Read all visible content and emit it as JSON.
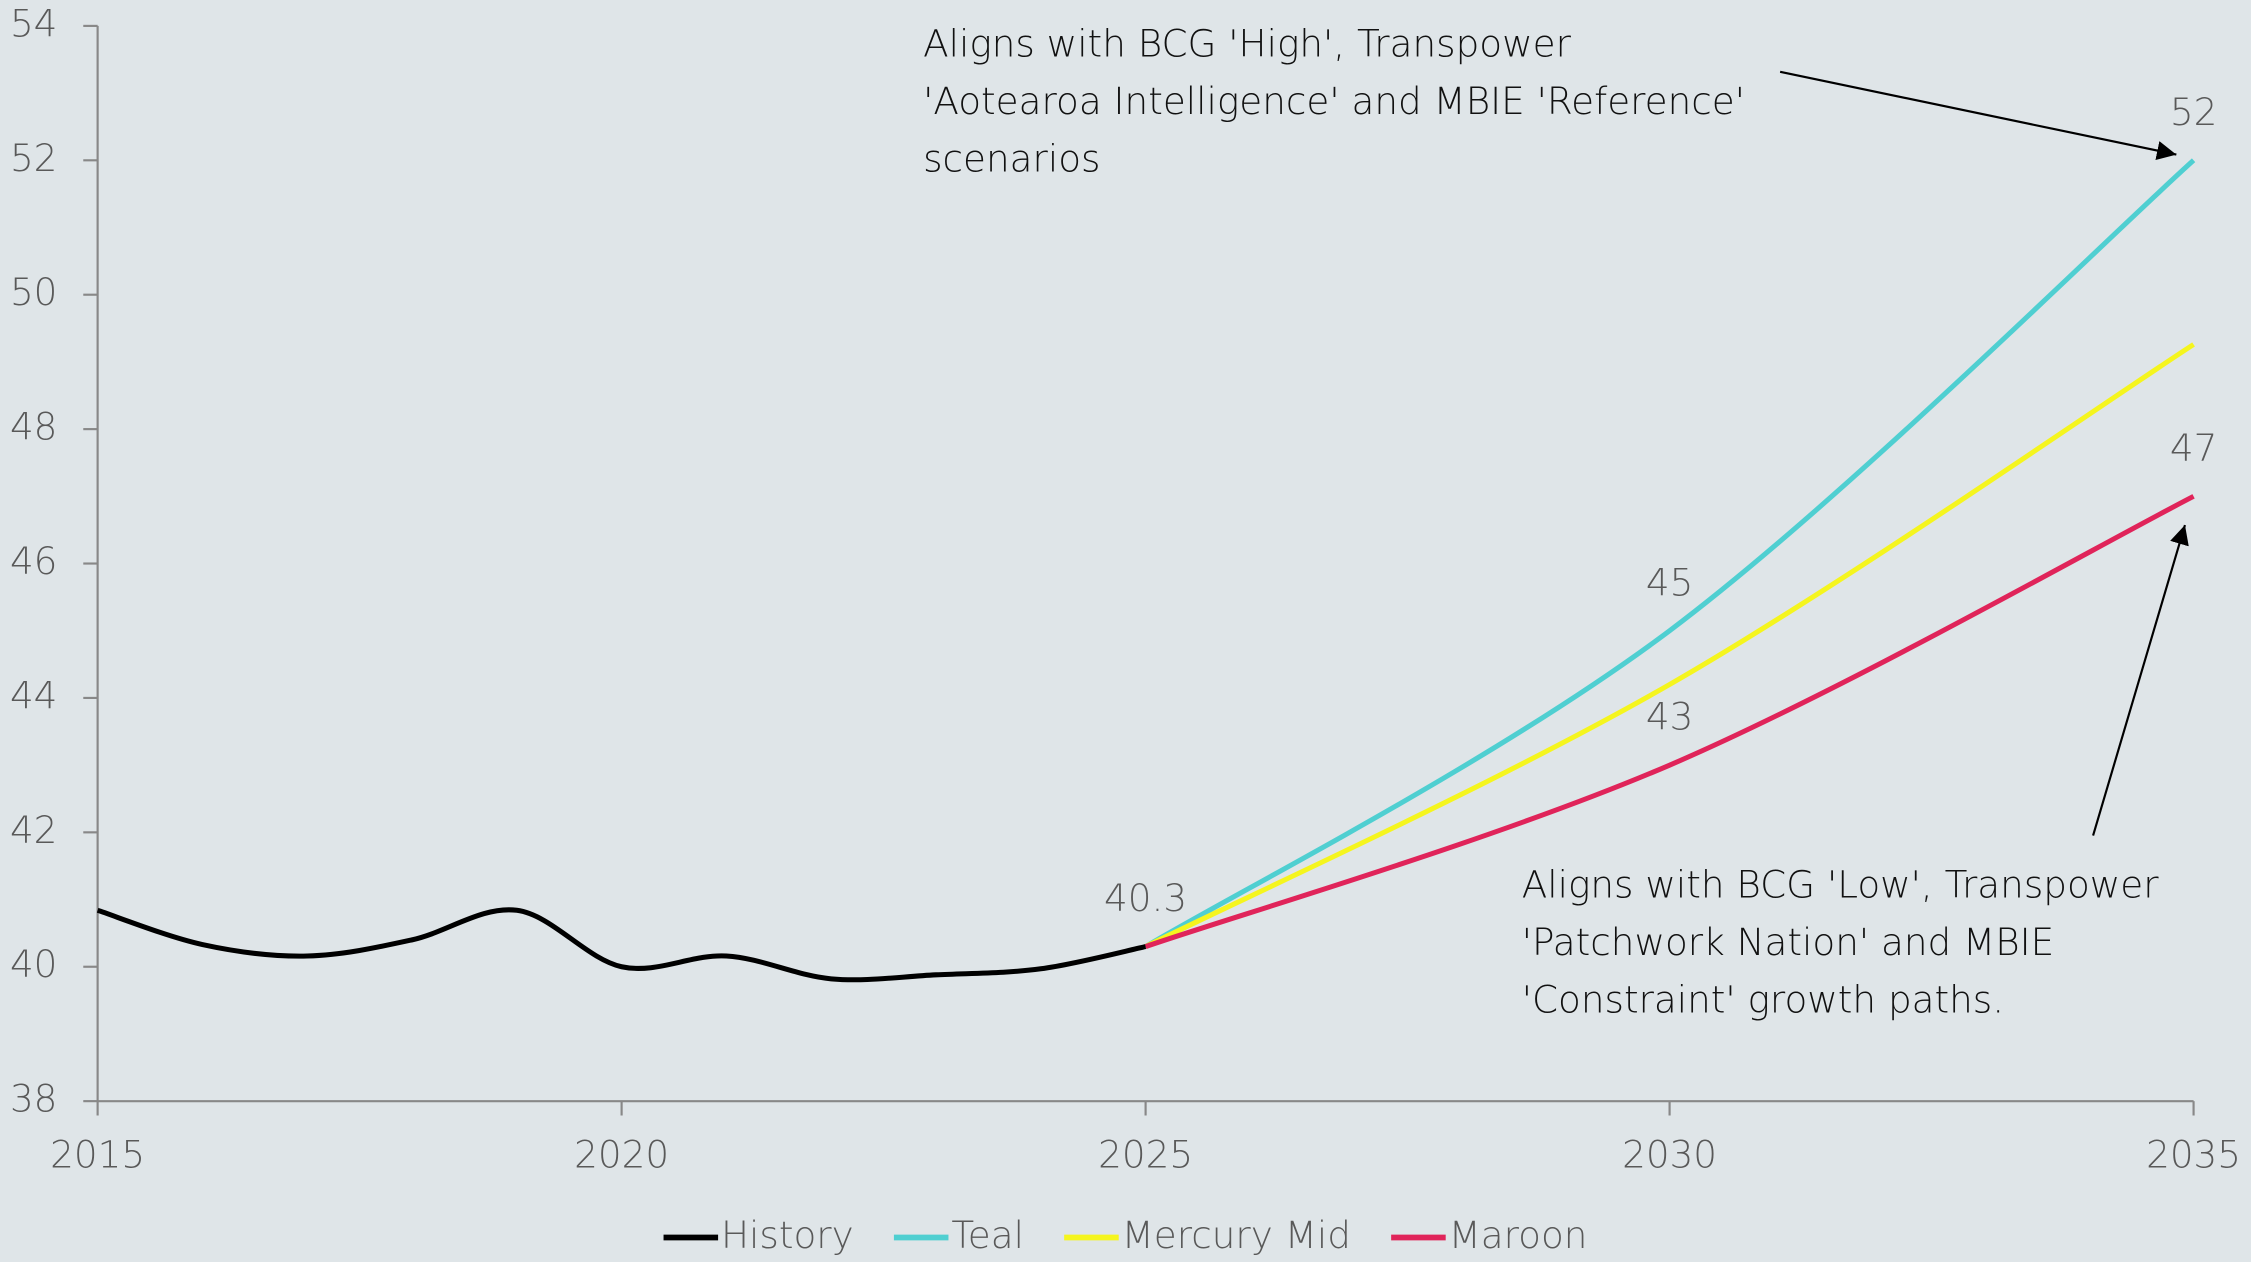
{
  "chart_data": {
    "type": "line",
    "xlim": [
      2015,
      2035
    ],
    "xticks": [
      2015,
      2020,
      2025,
      2030,
      2035
    ],
    "ylim": [
      38,
      54
    ],
    "yticks": [
      38,
      40,
      42,
      44,
      46,
      48,
      50,
      52,
      54
    ],
    "series": [
      {
        "name": "History",
        "color": "#000000",
        "x": [
          2015,
          2016,
          2017,
          2018,
          2019,
          2020,
          2021,
          2022,
          2023,
          2024,
          2025
        ],
        "values": [
          40.84,
          40.33,
          40.16,
          40.4,
          40.84,
          40.0,
          40.16,
          39.82,
          39.88,
          39.97,
          40.3
        ],
        "value_labels": [
          null,
          null,
          null,
          null,
          null,
          null,
          null,
          null,
          null,
          null,
          "40.3"
        ]
      },
      {
        "name": "Teal",
        "color": "#4fcfd1",
        "x": [
          2025,
          2030,
          2035
        ],
        "values": [
          40.3,
          45,
          52
        ],
        "value_labels": [
          null,
          "45",
          "52"
        ]
      },
      {
        "name": "Mercury Mid",
        "color": "#f5f51e",
        "x": [
          2025,
          2030,
          2035
        ],
        "values": [
          40.3,
          44.2,
          49.26
        ],
        "value_labels": [
          null,
          null,
          null
        ]
      },
      {
        "name": "Maroon",
        "color": "#e0245a",
        "x": [
          2025,
          2030,
          2035
        ],
        "values": [
          40.3,
          43,
          47
        ],
        "value_labels": [
          null,
          "43",
          "47"
        ]
      }
    ],
    "annotations": [
      {
        "lines": [
          "Aligns with BCG 'High', Transpower",
          "'Aotearoa Intelligence' and MBIE 'Reference'",
          "scenarios"
        ]
      },
      {
        "lines": [
          "Aligns with BCG 'Low', Transpower",
          "'Patchwork Nation' and MBIE",
          "'Constraint' growth paths."
        ]
      }
    ],
    "legend": "bottom"
  }
}
